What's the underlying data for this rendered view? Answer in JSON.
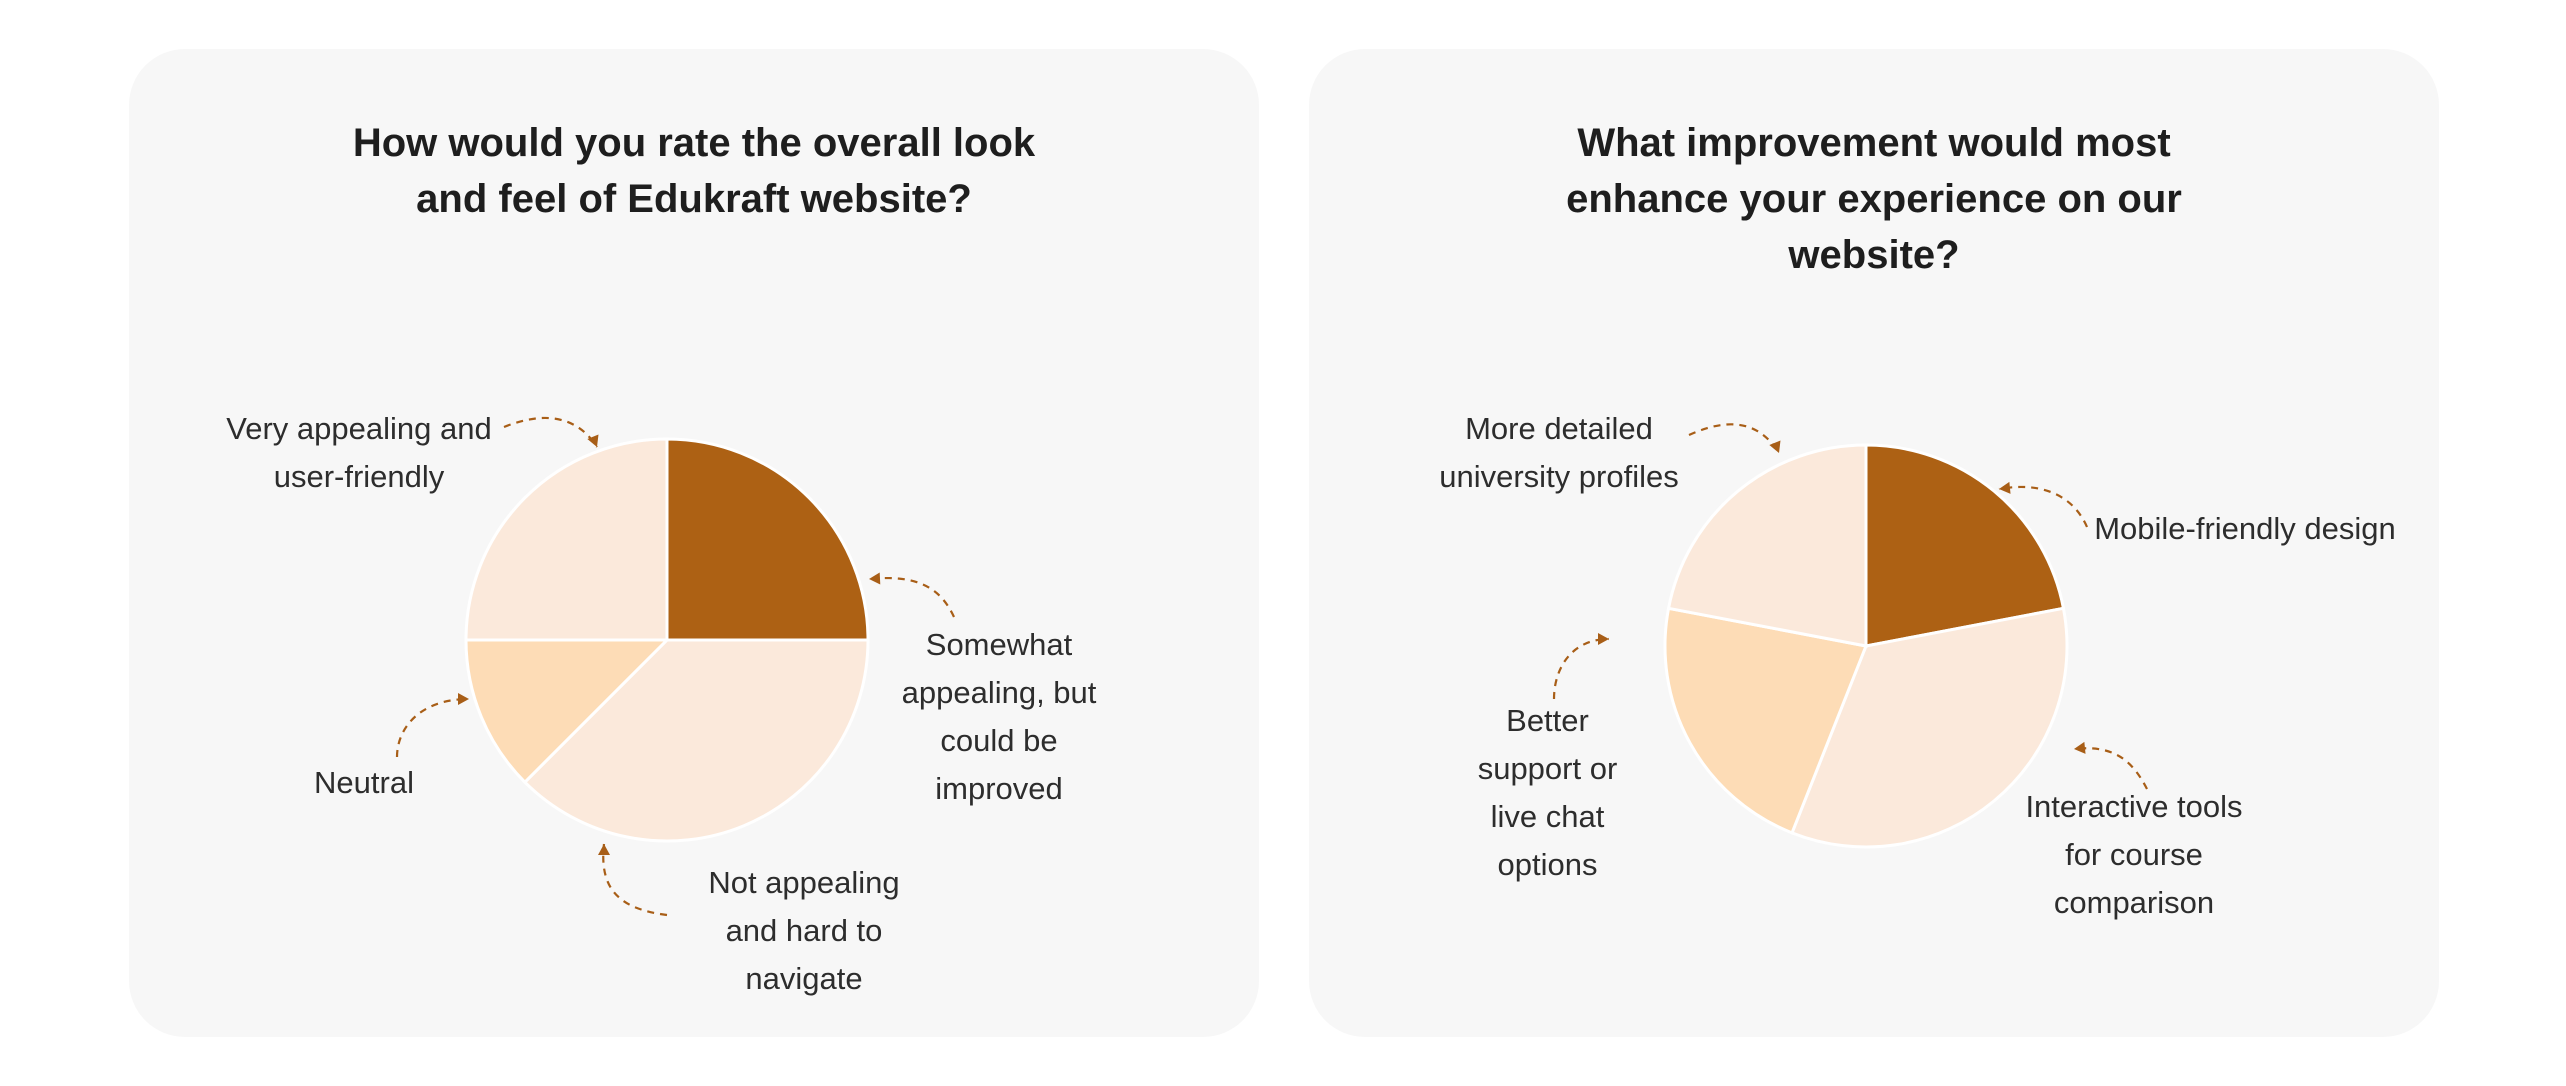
{
  "colors": {
    "card_background": "#f7f7f7",
    "accent_dark": "#ad6114",
    "accent_light": "#fbe9db",
    "accent_mid": "#fddcb6",
    "arrow": "#a85e17"
  },
  "chart_data": [
    {
      "type": "pie",
      "title": "How would you rate the overall look and feel of Edukraft website?",
      "slices": [
        {
          "label": "Somewhat appealing, but could be improved",
          "value": 25,
          "color": "#ad6114"
        },
        {
          "label": "Not appealing and hard to navigate",
          "value": 37.5,
          "color": "#fbe9db"
        },
        {
          "label": "Neutral",
          "value": 12.5,
          "color": "#fddcb6"
        },
        {
          "label": "Very appealing and user-friendly",
          "value": 25,
          "color": "#fbe9db"
        }
      ]
    },
    {
      "type": "pie",
      "title": "What improvement would most enhance your experience on our website?",
      "slices": [
        {
          "label": "Mobile-friendly design",
          "value": 22,
          "color": "#ad6114"
        },
        {
          "label": "Interactive tools for course comparison",
          "value": 34,
          "color": "#fbe9db"
        },
        {
          "label": "Better support or live chat options",
          "value": 22,
          "color": "#fddcb6"
        },
        {
          "label": "More detailed university profiles",
          "value": 22,
          "color": "#fbe9db"
        }
      ]
    }
  ]
}
